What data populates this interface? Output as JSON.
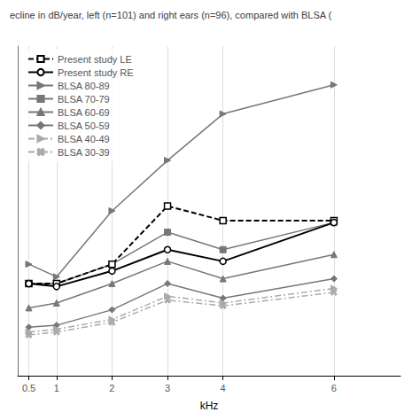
{
  "chart_data": {
    "type": "line",
    "title": "ecline in dB/year, left (n=101) and right ears (n=96), compared with BLSA (",
    "xlabel": "kHz",
    "x": [
      0.5,
      1,
      2,
      3,
      4,
      6
    ],
    "xlim": [
      0.3,
      7.2
    ],
    "xticks": [
      0.5,
      1,
      2,
      3,
      4,
      6
    ],
    "ylim": [
      -0.4,
      3.0
    ],
    "grid": true,
    "legend": "upper left",
    "tick_labels": "x",
    "series": [
      {
        "name": "Present study LE",
        "color": "black",
        "line_style": "dashed",
        "marker": "open-square",
        "values": [
          0.55,
          0.55,
          0.75,
          1.35,
          1.2,
          1.2
        ]
      },
      {
        "name": "Present study RE",
        "color": "black",
        "line_style": "solid",
        "marker": "open-circle",
        "values": [
          0.55,
          0.52,
          0.68,
          0.9,
          0.78,
          1.18
        ]
      },
      {
        "name": "BLSA 80-89",
        "color": "#777777",
        "line_style": "solid",
        "marker": "triangle-right",
        "values": [
          0.75,
          0.62,
          1.3,
          1.82,
          2.3,
          2.6
        ]
      },
      {
        "name": "BLSA 70-79",
        "color": "#777777",
        "line_style": "solid",
        "marker": "square",
        "values": [
          0.55,
          0.55,
          0.75,
          1.08,
          0.9,
          1.18
        ]
      },
      {
        "name": "BLSA 60-69",
        "color": "#777777",
        "line_style": "solid",
        "marker": "triangle",
        "values": [
          0.3,
          0.35,
          0.55,
          0.78,
          0.6,
          0.85
        ]
      },
      {
        "name": "BLSA 50-59",
        "color": "#777777",
        "line_style": "solid",
        "marker": "diamond",
        "values": [
          0.1,
          0.12,
          0.28,
          0.55,
          0.4,
          0.6
        ]
      },
      {
        "name": "BLSA 40-49",
        "color": "#aaaaaa",
        "line_style": "dashdot",
        "marker": "triangle-right",
        "values": [
          0.05,
          0.08,
          0.18,
          0.42,
          0.35,
          0.5
        ]
      },
      {
        "name": "BLSA 30-39",
        "color": "#aaaaaa",
        "line_style": "dashdot",
        "marker": "x",
        "values": [
          0.02,
          0.05,
          0.15,
          0.38,
          0.32,
          0.46
        ]
      }
    ]
  }
}
